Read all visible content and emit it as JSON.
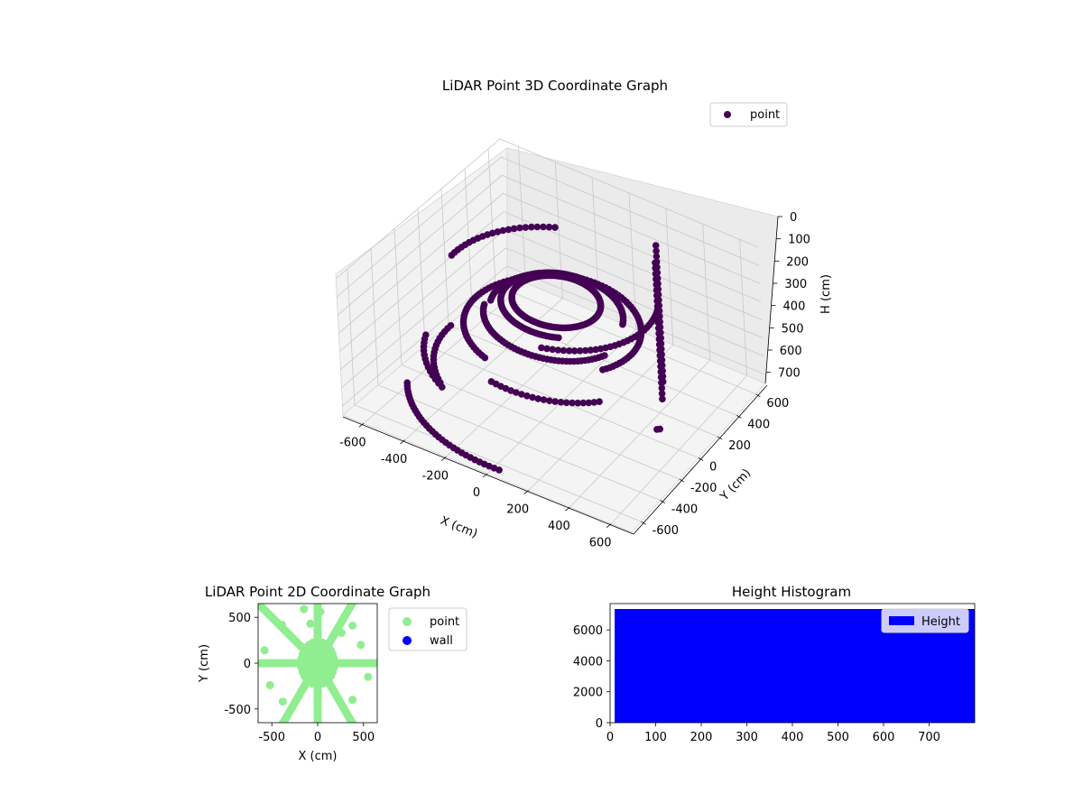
{
  "chart_data": [
    {
      "type": "scatter",
      "projection": "3d",
      "title": "LiDAR Point 3D Coordinate Graph",
      "xlabel": "X (cm)",
      "ylabel": "Y (cm)",
      "zlabel": "H (cm)",
      "xlim": [
        -700,
        700
      ],
      "ylim": [
        -700,
        700
      ],
      "zlim": [
        0,
        750
      ],
      "z_inverted": true,
      "xticks": [
        -600,
        -400,
        -200,
        0,
        200,
        400,
        600
      ],
      "yticks": [
        -600,
        -400,
        -200,
        0,
        200,
        400,
        600
      ],
      "zticks": [
        0,
        100,
        200,
        300,
        400,
        500,
        600,
        700
      ],
      "grid": true,
      "legend": {
        "position": "upper-right",
        "entries": [
          "point"
        ]
      },
      "colors": {
        "point": "#440154",
        "pane_floor": "#f2f2f2",
        "pane_wall": "#ebebeb"
      },
      "series": [
        {
          "name": "point",
          "groups": [
            {
              "kind": "vertical-line",
              "x": 360,
              "y": 300,
              "h_range": [
                0,
                750
              ]
            },
            {
              "kind": "vertical-line",
              "x": 300,
              "y": 420,
              "h_range": [
                0,
                750
              ]
            },
            {
              "kind": "arc",
              "radius": 680,
              "h": 720,
              "angle_range": [
                -150,
                -85
              ]
            },
            {
              "kind": "arc",
              "radius": 200,
              "h": 200,
              "angle_range": [
                0,
                360
              ]
            },
            {
              "kind": "arc",
              "radius": 250,
              "h": 220,
              "angle_range": [
                90,
                300
              ]
            },
            {
              "kind": "arc",
              "radius": 300,
              "h": 260,
              "angle_range": [
                20,
                200
              ]
            },
            {
              "kind": "arc",
              "radius": 330,
              "h": 290,
              "angle_range": [
                200,
                340
              ]
            },
            {
              "kind": "arc",
              "radius": 380,
              "h": 320,
              "angle_range": [
                -30,
                110
              ]
            },
            {
              "kind": "arc",
              "radius": 420,
              "h": 360,
              "angle_range": [
                140,
                250
              ]
            },
            {
              "kind": "arc",
              "radius": 470,
              "h": 130,
              "angle_range": [
                -70,
                20
              ]
            },
            {
              "kind": "arc",
              "radius": 520,
              "h": 160,
              "angle_range": [
                120,
                185
              ]
            },
            {
              "kind": "arc",
              "radius": 560,
              "h": 580,
              "angle_range": [
                180,
                230
              ]
            },
            {
              "kind": "arc",
              "radius": 600,
              "h": 520,
              "angle_range": [
                200,
                240
              ]
            },
            {
              "kind": "arc",
              "radius": 480,
              "h": 410,
              "angle_range": [
                -100,
                -40
              ]
            },
            {
              "kind": "points",
              "x": [
                650,
                660
              ],
              "y": [
                -300,
                -290
              ],
              "h": [
                440,
                440
              ]
            }
          ]
        }
      ]
    },
    {
      "type": "scatter",
      "title": "LiDAR Point 2D Coordinate Graph",
      "xlabel": "X (cm)",
      "ylabel": "Y (cm)",
      "xlim": [
        -650,
        650
      ],
      "ylim": [
        -650,
        650
      ],
      "xticks": [
        -500,
        0,
        500
      ],
      "yticks": [
        -500,
        0,
        500
      ],
      "grid": false,
      "legend": {
        "position": "outside-right",
        "entries": [
          "point",
          "wall"
        ]
      },
      "colors": {
        "point": "#90ee90",
        "wall": "#0000ff"
      },
      "series": [
        {
          "name": "point",
          "rays_deg": [
            0,
            60,
            90,
            135,
            180,
            240,
            270,
            300
          ],
          "ray_range": [
            0,
            900
          ],
          "extra_points": [
            [
              -390,
              420
            ],
            [
              -150,
              590
            ],
            [
              380,
              410
            ],
            [
              -580,
              140
            ],
            [
              -520,
              -240
            ],
            [
              -380,
              -420
            ],
            [
              470,
              200
            ],
            [
              550,
              -150
            ],
            [
              380,
              -400
            ],
            [
              30,
              560
            ],
            [
              -80,
              430
            ],
            [
              260,
              330
            ]
          ]
        },
        {
          "name": "wall",
          "points": []
        }
      ]
    },
    {
      "type": "bar",
      "title": "Height Histogram",
      "xlim": [
        0,
        800
      ],
      "ylim": [
        0,
        7700
      ],
      "xticks": [
        0,
        100,
        200,
        300,
        400,
        500,
        600,
        700
      ],
      "yticks": [
        0,
        2000,
        4000,
        6000
      ],
      "grid": false,
      "legend": {
        "position": "upper-right",
        "entries": [
          "Height"
        ]
      },
      "colors": {
        "Height": "#0000ff"
      },
      "series": [
        {
          "name": "Height",
          "bins": [
            10,
            800
          ],
          "value": 7350
        }
      ]
    }
  ]
}
